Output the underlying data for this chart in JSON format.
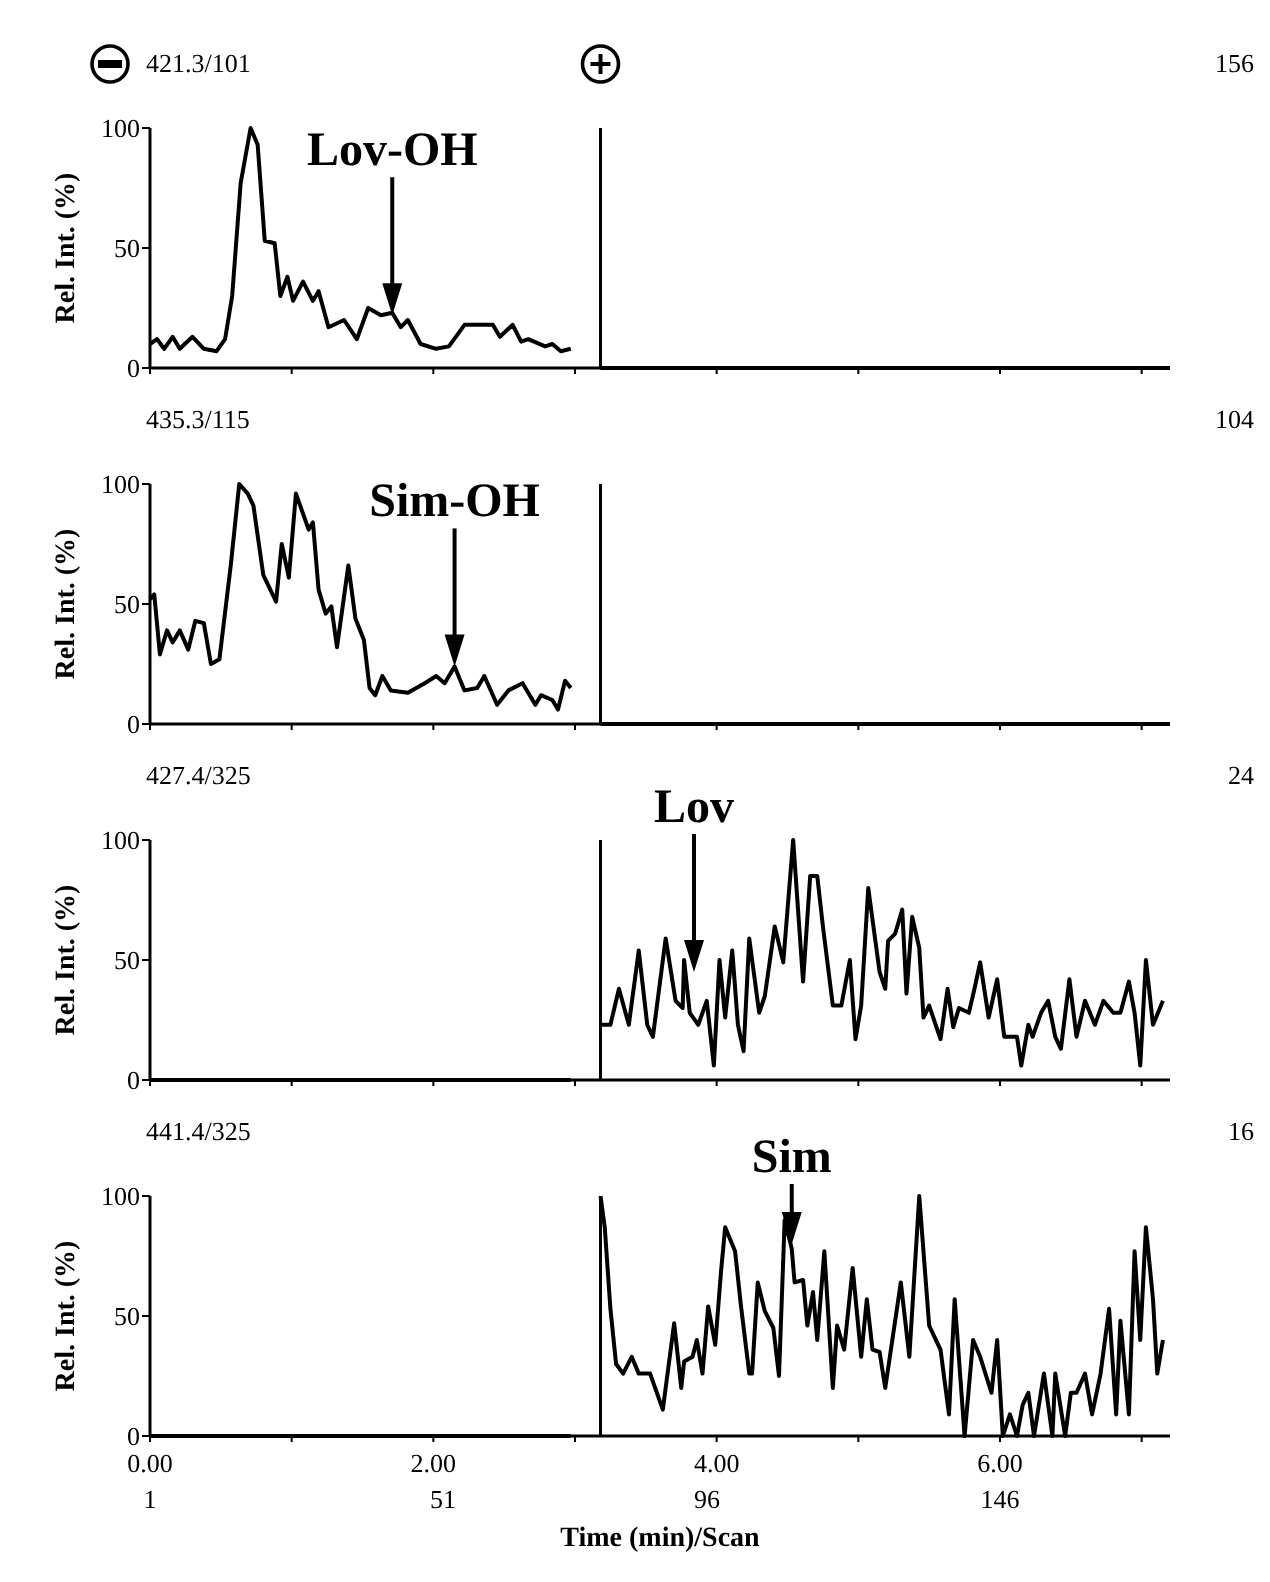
{
  "chart_data": [
    {
      "type": "line",
      "title": "421.3/101",
      "ylabel": "Rel. Int. (%)",
      "xlim": [
        0,
        7.2
      ],
      "ylim": [
        0,
        100
      ],
      "yticks": [
        0,
        50,
        100
      ],
      "xticks": [
        {
          "value": 0,
          "label": null
        },
        {
          "value": 1,
          "label": null
        },
        {
          "value": 2,
          "label": null
        },
        {
          "value": 3,
          "label": null
        },
        {
          "value": 4,
          "label": null
        },
        {
          "value": 5,
          "label": null
        },
        {
          "value": 6,
          "label": null
        },
        {
          "value": 7,
          "label": null
        }
      ],
      "tick_labels": "y",
      "grid": false,
      "line_style": "solid",
      "marker": "none",
      "ref_lines": [
        {
          "axis": "x",
          "value": 3.18,
          "color": "#000000"
        }
      ],
      "annotations": [
        "156",
        {
          "text": "Lov-OH",
          "x": 1.71,
          "y": 22
        }
      ],
      "series": [
        {
          "color": "#000000",
          "x": [
            0,
            0.05,
            0.1,
            0.16,
            0.21,
            0.3,
            0.38,
            0.47,
            0.53,
            0.58,
            0.64,
            0.71,
            0.76,
            0.81,
            0.88,
            0.92,
            0.97,
            1.01,
            1.08,
            1.15,
            1.19,
            1.26,
            1.37,
            1.46,
            1.54,
            1.63,
            1.71,
            1.77,
            1.82,
            1.91,
            2.02,
            2.11,
            2.22,
            2.28,
            2.42,
            2.47,
            2.56,
            2.62,
            2.67,
            2.79,
            2.84,
            2.9,
            2.97
          ],
          "values": [
            10,
            12,
            8,
            13,
            8,
            13,
            8,
            7,
            12,
            30,
            77,
            100,
            93,
            53,
            52,
            30,
            38,
            28,
            36,
            28,
            32,
            17,
            20,
            12,
            25,
            22,
            23,
            17,
            20,
            10,
            8,
            9,
            18,
            18,
            18,
            13,
            18,
            11,
            12,
            9,
            10,
            7,
            8
          ]
        },
        {
          "color": "#000000",
          "x": [
            3.18,
            7.2
          ],
          "values": [
            0,
            0
          ]
        }
      ]
    },
    {
      "type": "line",
      "title": "435.3/115",
      "ylabel": "Rel. Int. (%)",
      "xlim": [
        0,
        7.2
      ],
      "ylim": [
        0,
        100
      ],
      "yticks": [
        0,
        50,
        100
      ],
      "xticks": [
        {
          "value": 0,
          "label": null
        },
        {
          "value": 1,
          "label": null
        },
        {
          "value": 2,
          "label": null
        },
        {
          "value": 3,
          "label": null
        },
        {
          "value": 4,
          "label": null
        },
        {
          "value": 5,
          "label": null
        },
        {
          "value": 6,
          "label": null
        },
        {
          "value": 7,
          "label": null
        }
      ],
      "tick_labels": "y",
      "grid": false,
      "line_style": "solid",
      "marker": "none",
      "ref_lines": [
        {
          "axis": "x",
          "value": 3.18,
          "color": "#000000"
        }
      ],
      "annotations": [
        "104",
        {
          "text": "Sim-OH",
          "x": 2.15,
          "y": 24
        }
      ],
      "series": [
        {
          "color": "#000000",
          "x": [
            0,
            0.03,
            0.07,
            0.12,
            0.16,
            0.21,
            0.27,
            0.32,
            0.38,
            0.43,
            0.49,
            0.57,
            0.63,
            0.69,
            0.73,
            0.8,
            0.89,
            0.93,
            0.98,
            1.03,
            1.12,
            1.15,
            1.19,
            1.24,
            1.28,
            1.32,
            1.4,
            1.45,
            1.51,
            1.55,
            1.59,
            1.64,
            1.7,
            1.82,
            1.94,
            2.02,
            2.08,
            2.15,
            2.22,
            2.31,
            2.36,
            2.45,
            2.53,
            2.63,
            2.72,
            2.76,
            2.84,
            2.88,
            2.93,
            2.97
          ],
          "values": [
            52,
            54,
            29,
            39,
            34,
            39,
            31,
            43,
            42,
            25,
            27,
            66,
            100,
            96,
            91,
            62,
            51,
            75,
            61,
            96,
            81,
            84,
            56,
            46,
            49,
            32,
            66,
            44,
            35,
            15,
            12,
            20,
            14,
            13,
            17,
            20,
            17,
            24,
            14,
            15,
            20,
            8,
            14,
            17,
            8,
            12,
            10,
            6,
            18,
            15
          ]
        },
        {
          "color": "#000000",
          "x": [
            3.18,
            7.2
          ],
          "values": [
            0,
            0
          ]
        }
      ]
    },
    {
      "type": "line",
      "title": "427.4/325",
      "ylabel": "Rel. Int. (%)",
      "xlim": [
        0,
        7.2
      ],
      "ylim": [
        0,
        100
      ],
      "yticks": [
        0,
        50,
        100
      ],
      "xticks": [
        {
          "value": 0,
          "label": null
        },
        {
          "value": 1,
          "label": null
        },
        {
          "value": 2,
          "label": null
        },
        {
          "value": 3,
          "label": null
        },
        {
          "value": 4,
          "label": null
        },
        {
          "value": 5,
          "label": null
        },
        {
          "value": 6,
          "label": null
        },
        {
          "value": 7,
          "label": null
        }
      ],
      "tick_labels": "y",
      "grid": false,
      "line_style": "solid",
      "marker": "none",
      "ref_lines": [
        {
          "axis": "x",
          "value": 3.18,
          "color": "#000000"
        }
      ],
      "annotations": [
        "24",
        {
          "text": "Lov",
          "x": 3.84,
          "y": 45
        }
      ],
      "series": [
        {
          "color": "#000000",
          "x": [
            0,
            2.97
          ],
          "values": [
            0,
            0
          ]
        },
        {
          "color": "#000000",
          "x": [
            3.18,
            3.25,
            3.31,
            3.38,
            3.45,
            3.51,
            3.55,
            3.64,
            3.71,
            3.76,
            3.77,
            3.81,
            3.87,
            3.93,
            3.98,
            4.02,
            4.06,
            4.11,
            4.15,
            4.19,
            4.23,
            4.3,
            4.34,
            4.41,
            4.47,
            4.54,
            4.61,
            4.66,
            4.71,
            4.75,
            4.82,
            4.88,
            4.94,
            4.98,
            5.02,
            5.07,
            5.15,
            5.19,
            5.21,
            5.26,
            5.31,
            5.34,
            5.38,
            5.43,
            5.46,
            5.5,
            5.58,
            5.63,
            5.67,
            5.71,
            5.78,
            5.82,
            5.86,
            5.92,
            5.98,
            6.03,
            6.12,
            6.15,
            6.2,
            6.23,
            6.29,
            6.34,
            6.39,
            6.43,
            6.49,
            6.54,
            6.6,
            6.67,
            6.73,
            6.8,
            6.85,
            6.91,
            6.95,
            6.99,
            7.03,
            7.08,
            7.15
          ],
          "values": [
            23,
            23,
            38,
            23,
            54,
            23,
            18,
            59,
            33,
            30,
            50,
            28,
            23,
            33,
            6,
            50,
            26,
            54,
            23,
            12,
            59,
            28,
            35,
            64,
            49,
            100,
            41,
            85,
            85,
            64,
            31,
            31,
            50,
            17,
            31,
            80,
            45,
            38,
            58,
            61,
            71,
            36,
            68,
            55,
            26,
            31,
            17,
            38,
            22,
            30,
            28,
            38,
            49,
            26,
            42,
            18,
            18,
            6,
            23,
            18,
            28,
            33,
            18,
            13,
            42,
            18,
            33,
            23,
            33,
            28,
            28,
            41,
            28,
            6,
            50,
            23,
            33
          ]
        }
      ]
    },
    {
      "type": "line",
      "title": "441.4/325",
      "ylabel": "Rel. Int. (%)",
      "xlabel": "Time (min)/Scan",
      "xlim": [
        0,
        7.2
      ],
      "ylim": [
        0,
        100
      ],
      "yticks": [
        0,
        50,
        100
      ],
      "xticks": [
        {
          "value": 0,
          "label": "0.00"
        },
        {
          "value": 1,
          "label": null
        },
        {
          "value": 2,
          "label": "2.00"
        },
        {
          "value": 3,
          "label": null
        },
        {
          "value": 4,
          "label": "4.00"
        },
        {
          "value": 5,
          "label": null
        },
        {
          "value": 6,
          "label": "6.00"
        },
        {
          "value": 7,
          "label": null
        }
      ],
      "x2lim": [
        1,
        175
      ],
      "x2ticks": [
        1,
        51,
        96,
        146
      ],
      "grid": false,
      "line_style": "solid",
      "marker": "none",
      "ref_lines": [
        {
          "axis": "x",
          "value": 3.18,
          "color": "#000000"
        }
      ],
      "annotations": [
        "16",
        {
          "text": "Sim",
          "x": 4.53,
          "y": 80
        }
      ],
      "series": [
        {
          "color": "#000000",
          "x": [
            0,
            2.97
          ],
          "values": [
            0,
            0
          ]
        },
        {
          "color": "#000000",
          "x": [
            3.18,
            3.21,
            3.25,
            3.29,
            3.34,
            3.4,
            3.45,
            3.53,
            3.62,
            3.68,
            3.7,
            3.75,
            3.77,
            3.83,
            3.86,
            3.9,
            3.94,
            3.99,
            4.03,
            4.06,
            4.13,
            4.17,
            4.23,
            4.25,
            4.29,
            4.34,
            4.4,
            4.44,
            4.48,
            4.53,
            4.55,
            4.61,
            4.64,
            4.68,
            4.71,
            4.76,
            4.82,
            4.85,
            4.9,
            4.96,
            5.02,
            5.06,
            5.1,
            5.15,
            5.19,
            5.3,
            5.36,
            5.43,
            5.5,
            5.58,
            5.64,
            5.68,
            5.75,
            5.81,
            5.86,
            5.94,
            5.98,
            6.02,
            6.07,
            6.12,
            6.16,
            6.2,
            6.24,
            6.31,
            6.37,
            6.39,
            6.46,
            6.5,
            6.54,
            6.6,
            6.65,
            6.71,
            6.77,
            6.82,
            6.85,
            6.91,
            6.95,
            6.99,
            7.03,
            7.08,
            7.11,
            7.15
          ],
          "values": [
            100,
            87,
            53,
            30,
            26,
            33,
            26,
            26,
            11,
            38,
            47,
            20,
            31,
            33,
            40,
            26,
            54,
            38,
            68,
            87,
            77,
            55,
            26,
            26,
            64,
            52,
            45,
            25,
            90,
            78,
            64,
            65,
            46,
            60,
            40,
            77,
            20,
            46,
            36,
            70,
            33,
            57,
            36,
            35,
            20,
            64,
            33,
            100,
            46,
            36,
            9,
            57,
            0,
            40,
            33,
            18,
            40,
            0,
            9,
            0,
            13,
            18,
            0,
            26,
            0,
            26,
            0,
            18,
            18,
            26,
            9,
            26,
            53,
            9,
            48,
            9,
            77,
            40,
            87,
            57,
            26,
            40
          ]
        }
      ]
    }
  ]
}
